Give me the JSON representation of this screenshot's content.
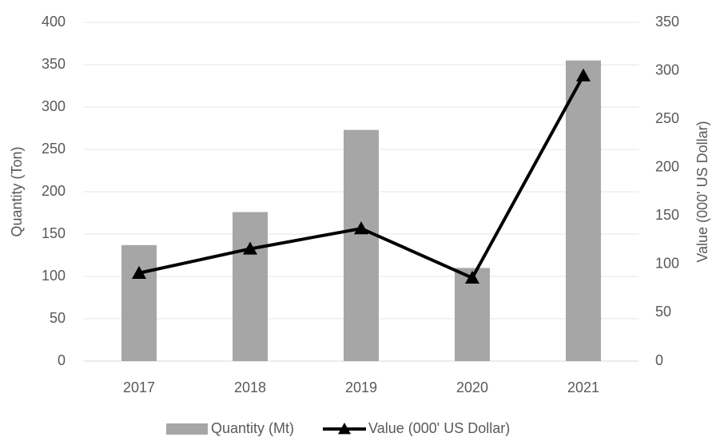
{
  "chart_data": {
    "type": "bar_line",
    "categories": [
      "2017",
      "2018",
      "2019",
      "2020",
      "2021"
    ],
    "series": [
      {
        "name": "Quantity (Mt)",
        "color": "#a6a6a6",
        "type": "bar",
        "values": [
          137,
          176,
          273,
          110,
          355
        ]
      },
      {
        "name": "Value (000' US Dollar)",
        "color": "#000000",
        "type": "line",
        "axis": "y2",
        "values": [
          91,
          116,
          137,
          86,
          295
        ]
      }
    ],
    "y_label": "Quantity (Ton)",
    "y2_label": "Value (000' US Dollar)",
    "ylim": [
      0,
      400
    ],
    "yticks": [
      0,
      50,
      100,
      150,
      200,
      250,
      300,
      350,
      400
    ],
    "y2lim": [
      0,
      350
    ],
    "y2ticks": [
      0,
      50,
      100,
      150,
      200,
      250,
      300,
      350
    ],
    "grid": true,
    "legend": "bottom"
  }
}
